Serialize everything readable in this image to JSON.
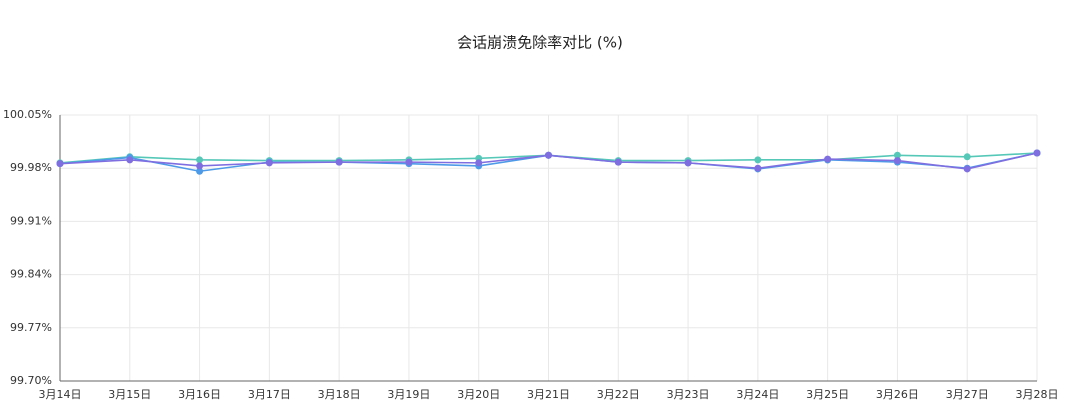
{
  "chart_data": {
    "type": "line",
    "title": "会话崩溃免除率对比 (%)",
    "categories": [
      "3月14日",
      "3月15日",
      "3月16日",
      "3月17日",
      "3月18日",
      "3月19日",
      "3月20日",
      "3月21日",
      "3月22日",
      "3月23日",
      "3月24日",
      "3月25日",
      "3月26日",
      "3月27日",
      "3月28日"
    ],
    "series": [
      {
        "color": "#56c8b8",
        "values": [
          99.987,
          99.995,
          99.991,
          99.99,
          99.99,
          99.991,
          99.993,
          99.997,
          99.99,
          99.99,
          99.991,
          99.991,
          99.997,
          99.995,
          100.0
        ]
      },
      {
        "color": "#4d9be8",
        "values": [
          99.986,
          99.994,
          99.976,
          99.988,
          99.988,
          99.986,
          99.983,
          99.997,
          99.988,
          99.987,
          99.979,
          99.991,
          99.988,
          99.98,
          100.0
        ]
      },
      {
        "color": "#7f6ee0",
        "values": [
          99.986,
          99.991,
          99.983,
          99.987,
          99.988,
          99.988,
          99.987,
          99.997,
          99.988,
          99.987,
          99.98,
          99.992,
          99.99,
          99.979,
          100.0
        ]
      }
    ],
    "ylim": [
      99.7,
      100.05
    ],
    "yticks": [
      {
        "value": 99.7,
        "label": "99.70%"
      },
      {
        "value": 99.77,
        "label": "99.77%"
      },
      {
        "value": 99.84,
        "label": "99.84%"
      },
      {
        "value": 99.91,
        "label": "99.91%"
      },
      {
        "value": 99.98,
        "label": "99.98%"
      },
      {
        "value": 100.05,
        "label": "100.05%"
      }
    ],
    "grid": true
  }
}
